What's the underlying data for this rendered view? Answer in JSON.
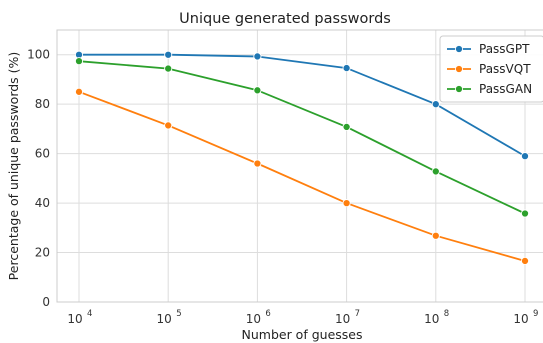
{
  "chart_data": {
    "type": "line",
    "title": "Unique generated passwords",
    "xlabel": "Number of guesses",
    "ylabel": "Percentage of unique passwords (%)",
    "x_scale": "log",
    "x": [
      10000,
      100000,
      1000000,
      10000000,
      100000000,
      1000000000
    ],
    "x_tick_labels": [
      {
        "base": "10",
        "exp": "4"
      },
      {
        "base": "10",
        "exp": "5"
      },
      {
        "base": "10",
        "exp": "6"
      },
      {
        "base": "10",
        "exp": "7"
      },
      {
        "base": "10",
        "exp": "8"
      },
      {
        "base": "10",
        "exp": "9"
      }
    ],
    "y_ticks": [
      0,
      20,
      40,
      60,
      80,
      100
    ],
    "ylim": [
      0,
      110
    ],
    "grid": true,
    "legend_position": "top-right",
    "series": [
      {
        "name": "PassGPT",
        "color": "#1f77b4",
        "values": [
          100,
          100,
          99.3,
          94.6,
          80,
          59
        ]
      },
      {
        "name": "PassVQT",
        "color": "#ff7f0e",
        "values": [
          85,
          71.4,
          56,
          40,
          26.8,
          16.6
        ]
      },
      {
        "name": "PassGAN",
        "color": "#2ca02c",
        "values": [
          97.4,
          94.4,
          85.6,
          70.8,
          52.8,
          35.8
        ]
      }
    ]
  }
}
